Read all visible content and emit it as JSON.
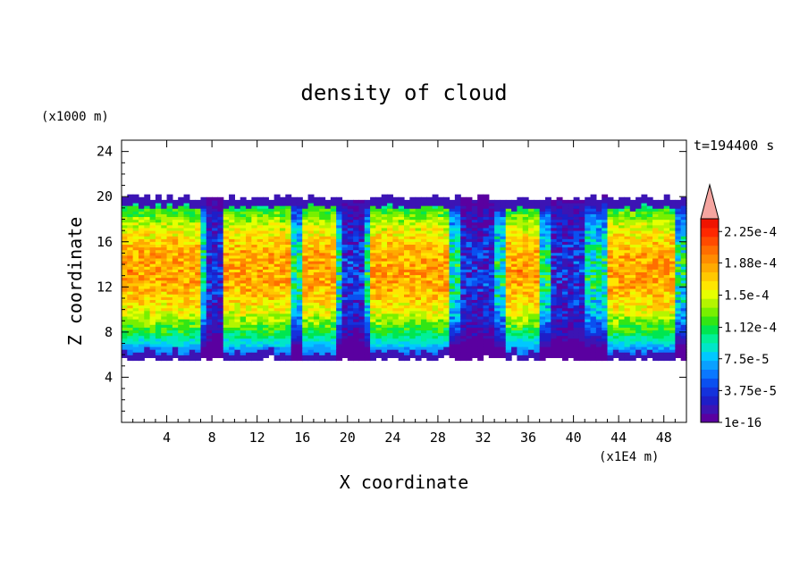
{
  "chart_data": {
    "type": "heatmap",
    "title": "density of cloud",
    "time_label": "t=194400 s",
    "xlabel": "X coordinate",
    "ylabel": "Z coordinate",
    "x_unit": "(x1E4 m)",
    "y_unit": "(x1000 m)",
    "xlim": [
      0,
      50
    ],
    "ylim": [
      0,
      25
    ],
    "x_ticks": [
      "4",
      "8",
      "12",
      "16",
      "20",
      "24",
      "28",
      "32",
      "36",
      "40",
      "44",
      "48"
    ],
    "x_tick_values": [
      4,
      8,
      12,
      16,
      20,
      24,
      28,
      32,
      36,
      40,
      44,
      48
    ],
    "y_ticks": [
      "4",
      "8",
      "12",
      "16",
      "20",
      "24"
    ],
    "y_tick_values": [
      4,
      8,
      12,
      16,
      20,
      24
    ],
    "colorbar": {
      "labels": [
        "1e-16",
        "3.75e-5",
        "7.5e-5",
        "1.12e-4",
        "1.5e-4",
        "1.88e-4",
        "2.25e-4"
      ],
      "label_values": [
        0,
        3.75e-05,
        7.5e-05,
        0.000112,
        0.00015,
        0.000188,
        0.000225
      ],
      "max": 0.00024,
      "extend": "max",
      "colors": [
        "#5a00a0",
        "#3c14b4",
        "#1e1ec8",
        "#1432dc",
        "#0a50f0",
        "#0a78ff",
        "#0aa0ff",
        "#00c8ff",
        "#00e6c8",
        "#00f096",
        "#00e650",
        "#32e614",
        "#78f000",
        "#b4f500",
        "#e6ff00",
        "#ffe600",
        "#ffc800",
        "#ffaa00",
        "#ff8c00",
        "#ff6e00",
        "#ff4b00",
        "#ff2800",
        "#f01400"
      ],
      "extend_color": "#f5a5a0"
    },
    "cloud_layer": {
      "bottom_z_approx": 5.5,
      "top_z_approx": 20.2,
      "core_z_range": [
        9,
        18
      ],
      "core_peak_value_approx": 0.00019,
      "high_density_x_ranges": [
        [
          0,
          7
        ],
        [
          9,
          15
        ],
        [
          16,
          19
        ],
        [
          22,
          29
        ],
        [
          34,
          37
        ],
        [
          43,
          49
        ]
      ],
      "low_density_x_ranges": [
        [
          7.5,
          9
        ],
        [
          19.5,
          21.5
        ],
        [
          30,
          33
        ],
        [
          38,
          41
        ]
      ]
    }
  }
}
